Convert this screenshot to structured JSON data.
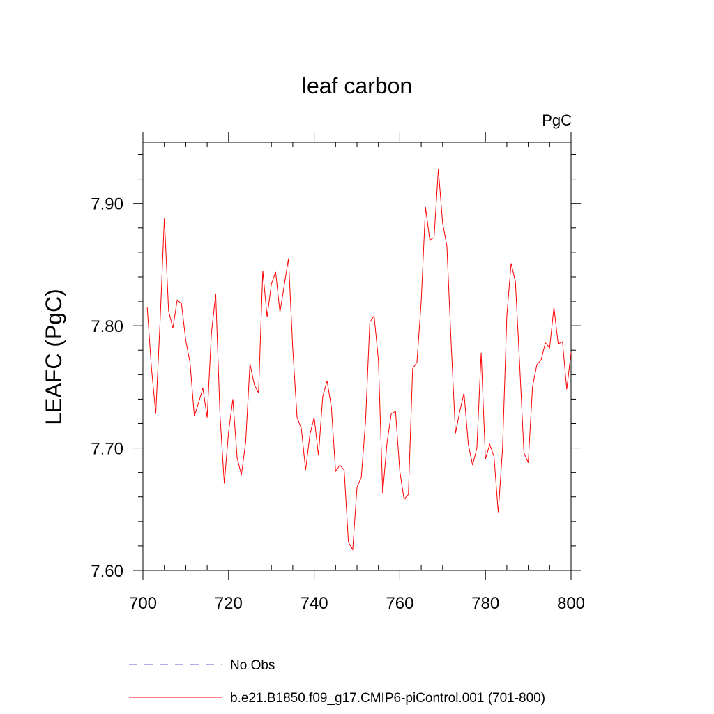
{
  "chart_data": {
    "type": "line",
    "title": "leaf carbon",
    "units": "PgC",
    "xlabel": "",
    "ylabel": "LEAFC  (PgC)",
    "xlim": [
      700,
      800
    ],
    "ylim": [
      7.6,
      7.95
    ],
    "xticks": [
      700,
      720,
      740,
      760,
      780,
      800
    ],
    "xtick_labels": [
      "700",
      "720",
      "740",
      "760",
      "780",
      "800"
    ],
    "yticks": [
      7.6,
      7.7,
      7.8,
      7.9
    ],
    "ytick_labels": [
      "7.60",
      "7.70",
      "7.80",
      "7.90"
    ],
    "grid": false,
    "legend_position": "bottom",
    "series": [
      {
        "name": "No Obs",
        "color": "#6a5acd",
        "style": "dashed",
        "x": [],
        "values": []
      },
      {
        "name": "b.e21.B1850.f09_g17.CMIP6-piControl.001 (701-800)",
        "color": "#ff0000",
        "style": "solid",
        "x": [
          701,
          702,
          703,
          704,
          705,
          706,
          707,
          708,
          709,
          710,
          711,
          712,
          713,
          714,
          715,
          716,
          717,
          718,
          719,
          720,
          721,
          722,
          723,
          724,
          725,
          726,
          727,
          728,
          729,
          730,
          731,
          732,
          733,
          734,
          735,
          736,
          737,
          738,
          739,
          740,
          741,
          742,
          743,
          744,
          745,
          746,
          747,
          748,
          749,
          750,
          751,
          752,
          753,
          754,
          755,
          756,
          757,
          758,
          759,
          760,
          761,
          762,
          763,
          764,
          765,
          766,
          767,
          768,
          769,
          770,
          771,
          772,
          773,
          774,
          775,
          776,
          777,
          778,
          779,
          780,
          781,
          782,
          783,
          784,
          785,
          786,
          787,
          788,
          789,
          790,
          791,
          792,
          793,
          794,
          795,
          796,
          797,
          798,
          799,
          800
        ],
        "values": [
          7.815,
          7.765,
          7.728,
          7.803,
          7.888,
          7.812,
          7.798,
          7.821,
          7.818,
          7.788,
          7.77,
          7.726,
          7.737,
          7.749,
          7.725,
          7.794,
          7.826,
          7.727,
          7.671,
          7.713,
          7.74,
          7.692,
          7.678,
          7.705,
          7.769,
          7.752,
          7.745,
          7.845,
          7.807,
          7.834,
          7.844,
          7.811,
          7.833,
          7.855,
          7.781,
          7.725,
          7.716,
          7.682,
          7.711,
          7.725,
          7.694,
          7.742,
          7.755,
          7.734,
          7.681,
          7.686,
          7.682,
          7.623,
          7.617,
          7.668,
          7.676,
          7.722,
          7.803,
          7.808,
          7.772,
          7.663,
          7.704,
          7.728,
          7.73,
          7.681,
          7.658,
          7.662,
          7.765,
          7.77,
          7.82,
          7.897,
          7.87,
          7.872,
          7.928,
          7.884,
          7.865,
          7.785,
          7.712,
          7.73,
          7.745,
          7.703,
          7.686,
          7.7,
          7.778,
          7.691,
          7.703,
          7.693,
          7.647,
          7.7,
          7.808,
          7.851,
          7.836,
          7.768,
          7.696,
          7.688,
          7.75,
          7.768,
          7.772,
          7.786,
          7.782,
          7.815,
          7.785,
          7.787,
          7.748,
          7.778
        ]
      }
    ]
  }
}
